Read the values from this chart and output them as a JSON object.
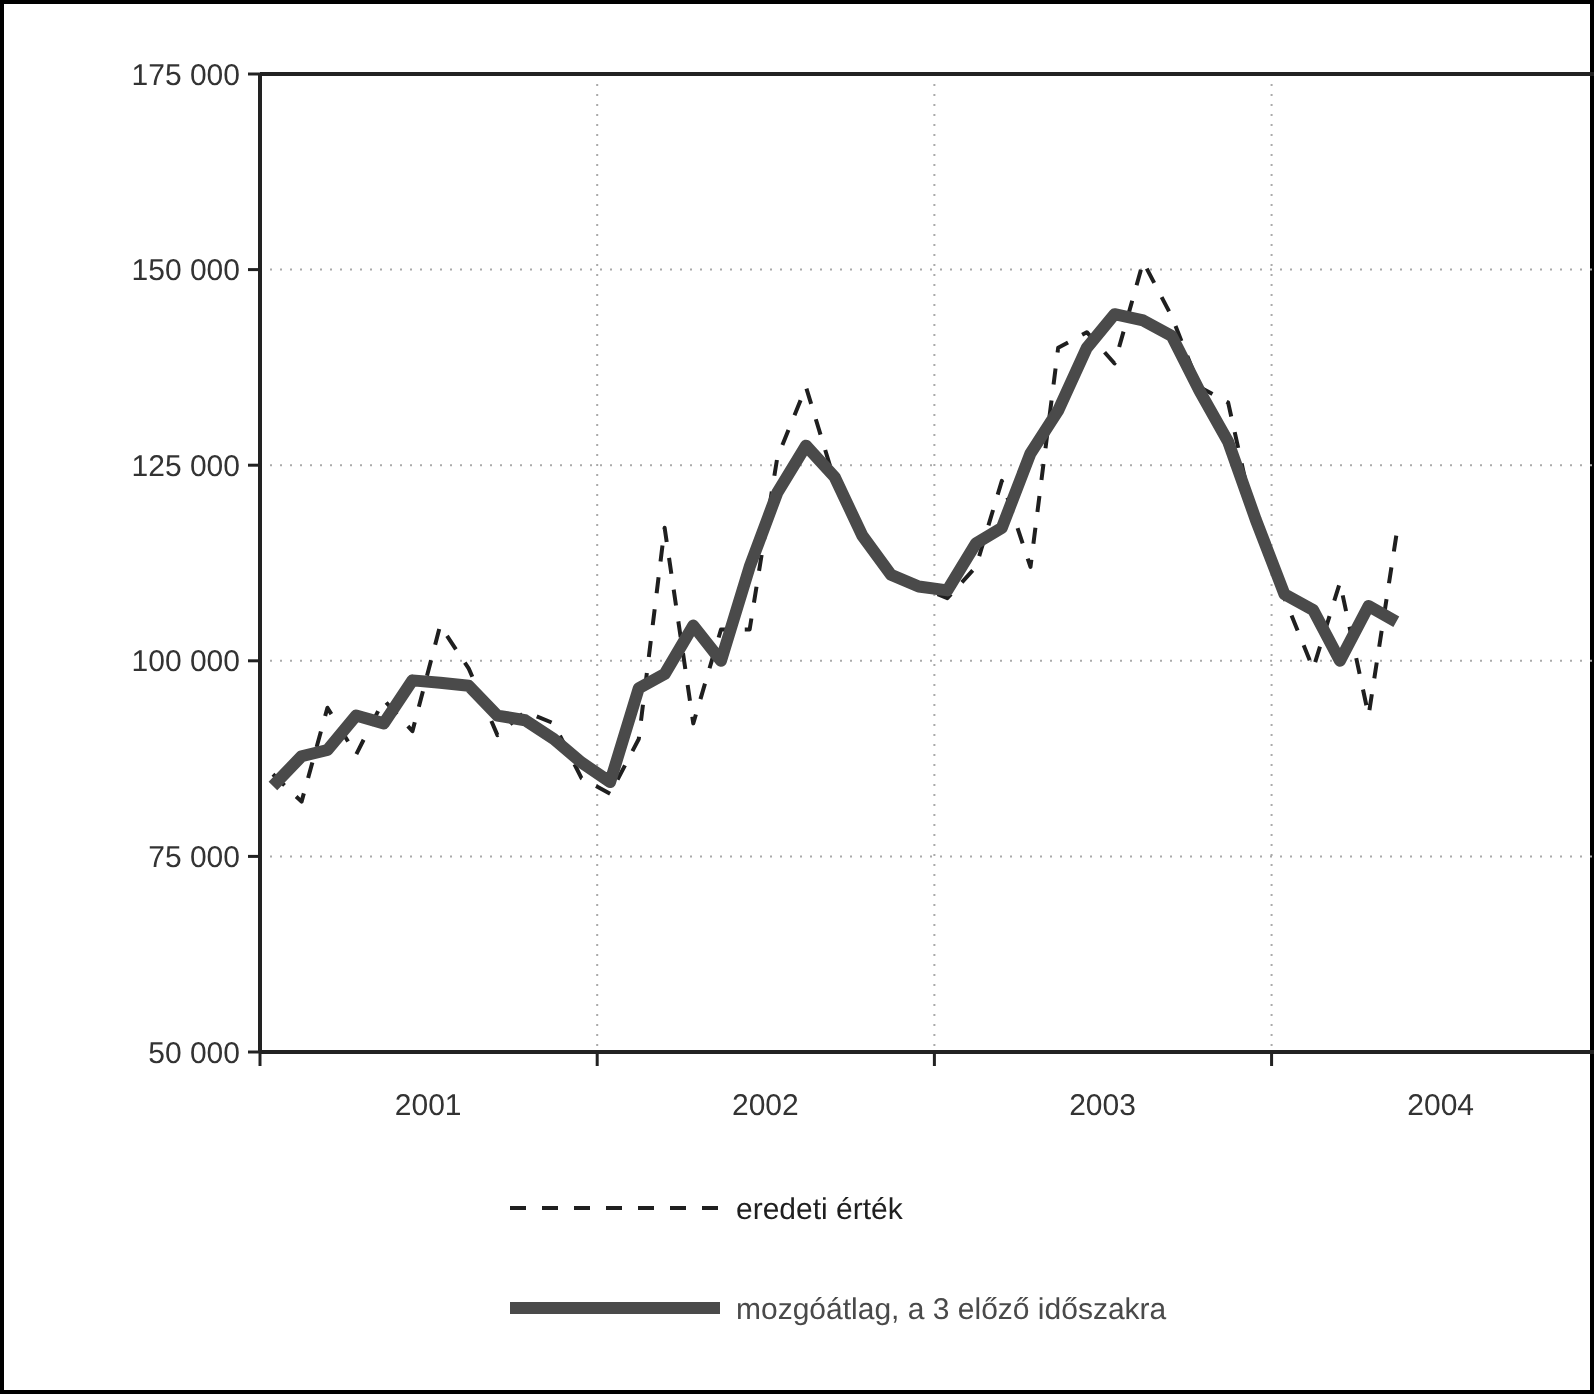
{
  "chart_data": {
    "type": "line",
    "x": [
      "2001-01-15",
      "2001-02-15",
      "2001-03-15",
      "2001-04-15",
      "2001-05-15",
      "2001-06-15",
      "2001-07-15",
      "2001-08-15",
      "2001-09-15",
      "2001-10-15",
      "2001-11-15",
      "2001-12-15",
      "2002-01-15",
      "2002-02-15",
      "2002-03-15",
      "2002-04-15",
      "2002-05-15",
      "2002-06-15",
      "2002-07-15",
      "2002-08-15",
      "2002-09-15",
      "2002-10-15",
      "2002-11-15",
      "2002-12-15",
      "2003-01-15",
      "2003-02-15",
      "2003-03-15",
      "2003-04-15",
      "2003-05-15",
      "2003-06-15",
      "2003-07-15",
      "2003-08-15",
      "2003-09-15",
      "2003-10-15",
      "2003-11-15",
      "2003-12-15",
      "2004-01-15",
      "2004-02-15",
      "2004-03-15",
      "2004-04-15",
      "2004-05-15"
    ],
    "series": [
      {
        "name": "eredeti érték",
        "color": "#1f1f1f",
        "line_style": "dashed",
        "values": [
          85500,
          82000,
          94000,
          88000,
          95000,
          91000,
          104500,
          99000,
          90500,
          93500,
          92000,
          85000,
          83000,
          90000,
          117000,
          92000,
          104000,
          104000,
          126000,
          135000,
          123000,
          116000,
          111000,
          109500,
          108000,
          112000,
          123000,
          112000,
          140000,
          142000,
          138000,
          151000,
          144000,
          135000,
          133000,
          117000,
          108000,
          99000,
          110000,
          93000,
          116000
        ]
      },
      {
        "name": "mozgóátlag, a 3 előző időszakra",
        "color": "#4a4a4a",
        "line_style": "solid",
        "values": [
          84000,
          87800,
          88600,
          93000,
          92000,
          97500,
          97200,
          96800,
          93000,
          92400,
          90000,
          87000,
          84500,
          96500,
          98300,
          104500,
          100000,
          112000,
          121500,
          127500,
          123500,
          116000,
          111000,
          109500,
          109000,
          115000,
          117000,
          126500,
          132000,
          140000,
          144300,
          143500,
          141500,
          134500,
          128000,
          118000,
          108500,
          106500,
          100000,
          107000,
          105000
        ]
      }
    ],
    "xlim": [
      "2001-01-01",
      "2004-12-15"
    ],
    "xticks": [
      {
        "value": "2001-01-01",
        "label": null
      },
      {
        "value": "2001-07-02",
        "label": "2001"
      },
      {
        "value": "2002-01-01",
        "label": null
      },
      {
        "value": "2002-07-02",
        "label": "2002"
      },
      {
        "value": "2003-01-01",
        "label": null
      },
      {
        "value": "2003-07-02",
        "label": "2003"
      },
      {
        "value": "2004-01-01",
        "label": null
      },
      {
        "value": "2004-07-02",
        "label": "2004"
      }
    ],
    "ylim": [
      50000,
      175000
    ],
    "yticks": [
      {
        "value": 50000,
        "label": "50 000"
      },
      {
        "value": 75000,
        "label": "75 000"
      },
      {
        "value": 100000,
        "label": "100 000"
      },
      {
        "value": 125000,
        "label": "125 000"
      },
      {
        "value": 150000,
        "label": "150 000"
      },
      {
        "value": 175000,
        "label": "175 000"
      }
    ],
    "grid": true,
    "legend": "bottom"
  }
}
